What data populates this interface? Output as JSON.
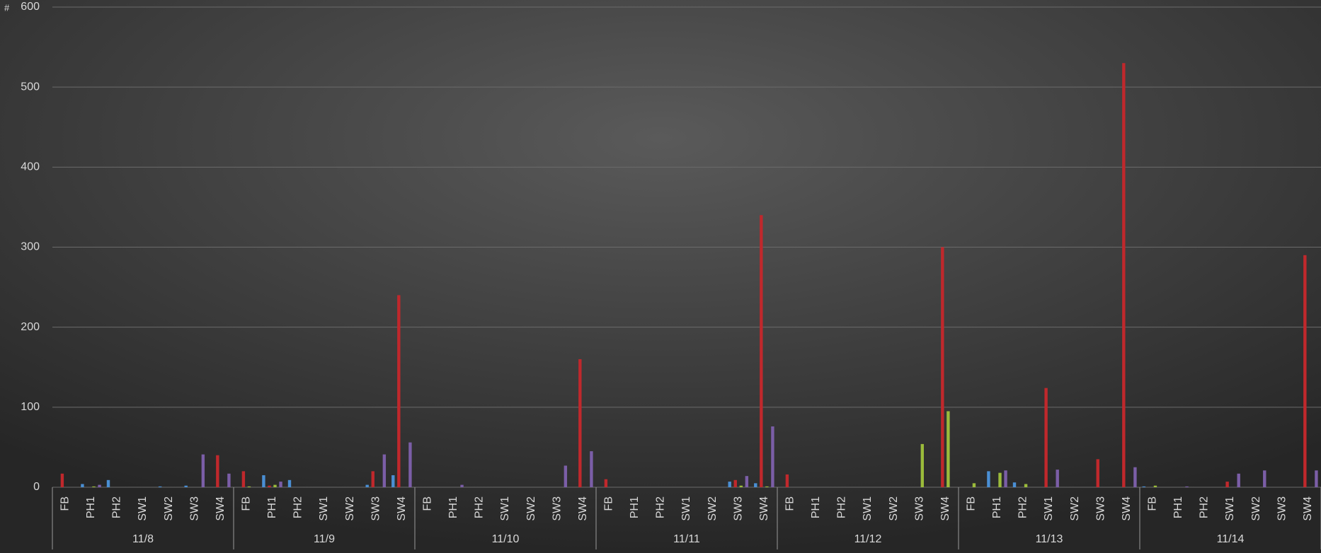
{
  "chart_data": {
    "type": "bar",
    "ylabel": "#",
    "groups": [
      "11/8",
      "11/9",
      "11/10",
      "11/11",
      "11/12",
      "11/13",
      "11/14"
    ],
    "categories": [
      "FB",
      "PH1",
      "PH2",
      "SW1",
      "SW2",
      "SW3",
      "SW4",
      "FB",
      "PH1",
      "PH2",
      "SW1",
      "SW2",
      "SW3",
      "SW4",
      "FB",
      "PH1",
      "PH2",
      "SW1",
      "SW2",
      "SW3",
      "SW4",
      "FB",
      "PH1",
      "PH2",
      "SW1",
      "SW2",
      "SW3",
      "SW4",
      "FB",
      "PH1",
      "PH2",
      "SW1",
      "SW2",
      "SW3",
      "SW4",
      "FB",
      "PH1",
      "PH2",
      "SW1",
      "SW2",
      "SW3",
      "SW4",
      "FB",
      "PH1",
      "PH2",
      "SW1",
      "SW2",
      "SW3",
      "SW4"
    ],
    "series": [
      {
        "color": "#4a8fd4",
        "values": [
          0,
          4,
          9,
          0,
          1,
          2,
          0,
          0,
          15,
          9,
          0,
          0,
          3,
          15,
          0,
          0,
          0,
          0,
          0,
          0,
          0,
          0,
          0,
          0,
          0,
          0,
          7,
          5,
          0,
          0,
          0,
          0,
          0,
          0,
          0,
          0,
          20,
          6,
          0,
          0,
          0,
          0,
          1,
          0,
          0,
          0,
          0,
          0,
          0
        ]
      },
      {
        "color": "#c0282c",
        "values": [
          17,
          0,
          0,
          0,
          0,
          0,
          40,
          20,
          2,
          0,
          0,
          0,
          20,
          240,
          0,
          0,
          0,
          0,
          0,
          0,
          160,
          10,
          0,
          0,
          0,
          0,
          9,
          340,
          16,
          0,
          0,
          0,
          0,
          0,
          300,
          0,
          0,
          0,
          124,
          0,
          35,
          530,
          0,
          0,
          0,
          7,
          0,
          0,
          290
        ]
      },
      {
        "color": "#9bbb3b",
        "values": [
          0,
          1,
          0,
          0,
          0,
          0,
          0,
          1,
          3,
          0,
          0,
          0,
          0,
          0,
          0,
          0,
          0,
          0,
          0,
          0,
          0,
          0,
          0,
          0,
          0,
          0,
          2,
          1,
          0,
          0,
          0,
          0,
          0,
          54,
          95,
          5,
          18,
          4,
          0,
          0,
          0,
          0,
          2,
          0,
          0,
          0,
          0,
          0,
          0
        ]
      },
      {
        "color": "#7b5ea7",
        "values": [
          0,
          3,
          0,
          0,
          0,
          41,
          17,
          0,
          7,
          0,
          0,
          0,
          41,
          56,
          0,
          3,
          0,
          0,
          0,
          27,
          45,
          0,
          0,
          0,
          0,
          0,
          14,
          76,
          0,
          0,
          0,
          0,
          0,
          0,
          0,
          0,
          21,
          0,
          22,
          0,
          0,
          25,
          0,
          1,
          0,
          17,
          21,
          0,
          21
        ]
      }
    ],
    "ylim": [
      0,
      600
    ],
    "yticks": [
      0,
      100,
      200,
      300,
      400,
      500,
      600
    ],
    "grid": true
  }
}
